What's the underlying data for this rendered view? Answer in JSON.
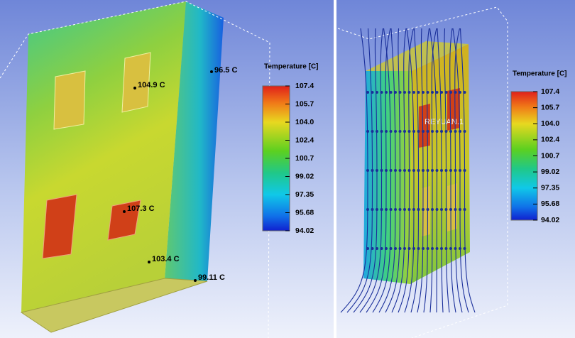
{
  "panels": [
    {
      "legend": {
        "title": "Temperature [C]",
        "labels": [
          "107.4",
          "105.7",
          "104.0",
          "102.4",
          "100.7",
          "99.02",
          "97.35",
          "95.68",
          "94.02"
        ]
      },
      "probes": [
        "104.9 C",
        "96.5 C",
        "107.3 C",
        "103.4 C",
        "99.11 C"
      ]
    },
    {
      "legend": {
        "title": "Temperature [C]",
        "labels": [
          "107.4",
          "105.7",
          "104.0",
          "102.4",
          "100.7",
          "99.02",
          "97.35",
          "95.68",
          "94.02"
        ]
      },
      "part_label": "REYUAN.1"
    }
  ]
}
